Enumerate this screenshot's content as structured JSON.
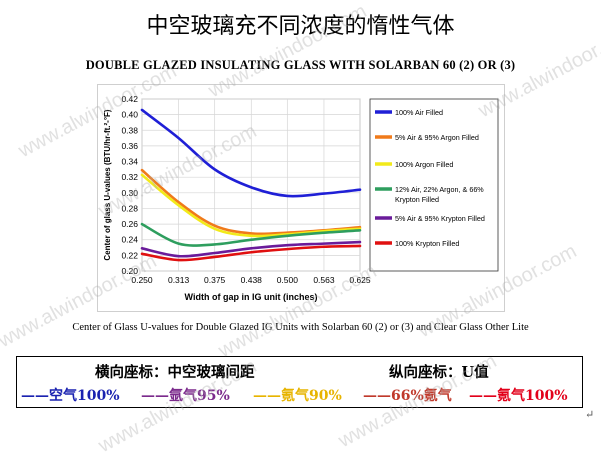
{
  "page_title": "中空玻璃充不同浓度的惰性气体",
  "caption": "Center of Glass U-values for Double Glazed IG Units with Solarban 60 (2) or (3) and Clear Glass Other Lite",
  "legend_box": {
    "x_note": "横向座标：中空玻璃间距",
    "y_note": "纵向座标：U值",
    "items": [
      {
        "text": "——空气100%",
        "color": "#1a22b0"
      },
      {
        "text": "——氩气95%",
        "color": "#7b2a8c"
      },
      {
        "text": "——氪气90%",
        "color": "#e7b400"
      },
      {
        "text": "——66%氪气",
        "color": "#c0392b"
      },
      {
        "text": "——氪气100%",
        "color": "#e2001a"
      }
    ]
  },
  "watermark": "www.alwindoor.com",
  "chart_data": {
    "type": "line",
    "title": "DOUBLE GLAZED INSULATING GLASS WITH SOLARBAN 60 (2) OR (3)",
    "xlabel": "Width of gap in IG unit (inches)",
    "ylabel": "Center of glass U-values (BTU/hr-ft.²-°F)",
    "x": [
      0.25,
      0.313,
      0.375,
      0.438,
      0.5,
      0.563,
      0.625
    ],
    "x_ticks": [
      "0.250",
      "0.313",
      "0.375",
      "0.438",
      "0.500",
      "0.563",
      "0.625"
    ],
    "xlim": [
      0.25,
      0.625
    ],
    "ylim": [
      0.2,
      0.42
    ],
    "y_ticks": [
      "0.20",
      "0.22",
      "0.24",
      "0.26",
      "0.28",
      "0.30",
      "0.32",
      "0.34",
      "0.36",
      "0.38",
      "0.40",
      "0.42"
    ],
    "grid": true,
    "legend_position": "right",
    "series": [
      {
        "name": "100% Air Filled",
        "color": "#1f1fd6",
        "values": [
          0.406,
          0.37,
          0.33,
          0.307,
          0.296,
          0.299,
          0.304
        ]
      },
      {
        "name": "5% Air & 95% Argon Filled",
        "color": "#f07a1a",
        "values": [
          0.329,
          0.288,
          0.258,
          0.248,
          0.249,
          0.252,
          0.256
        ]
      },
      {
        "name": "100% Argon Filled",
        "color": "#f2ea1a",
        "values": [
          0.323,
          0.284,
          0.254,
          0.245,
          0.247,
          0.251,
          0.254
        ]
      },
      {
        "name": "12% Air, 22% Argon, & 66% Krypton Filled",
        "color": "#2e9e5e",
        "values": [
          0.26,
          0.235,
          0.234,
          0.24,
          0.245,
          0.249,
          0.252
        ]
      },
      {
        "name": "5% Air & 95% Krypton Filled",
        "color": "#6a1b9a",
        "values": [
          0.229,
          0.219,
          0.223,
          0.229,
          0.233,
          0.235,
          0.237
        ]
      },
      {
        "name": "100% Krypton Filled",
        "color": "#e01010",
        "values": [
          0.222,
          0.214,
          0.218,
          0.224,
          0.228,
          0.231,
          0.232
        ]
      }
    ]
  }
}
